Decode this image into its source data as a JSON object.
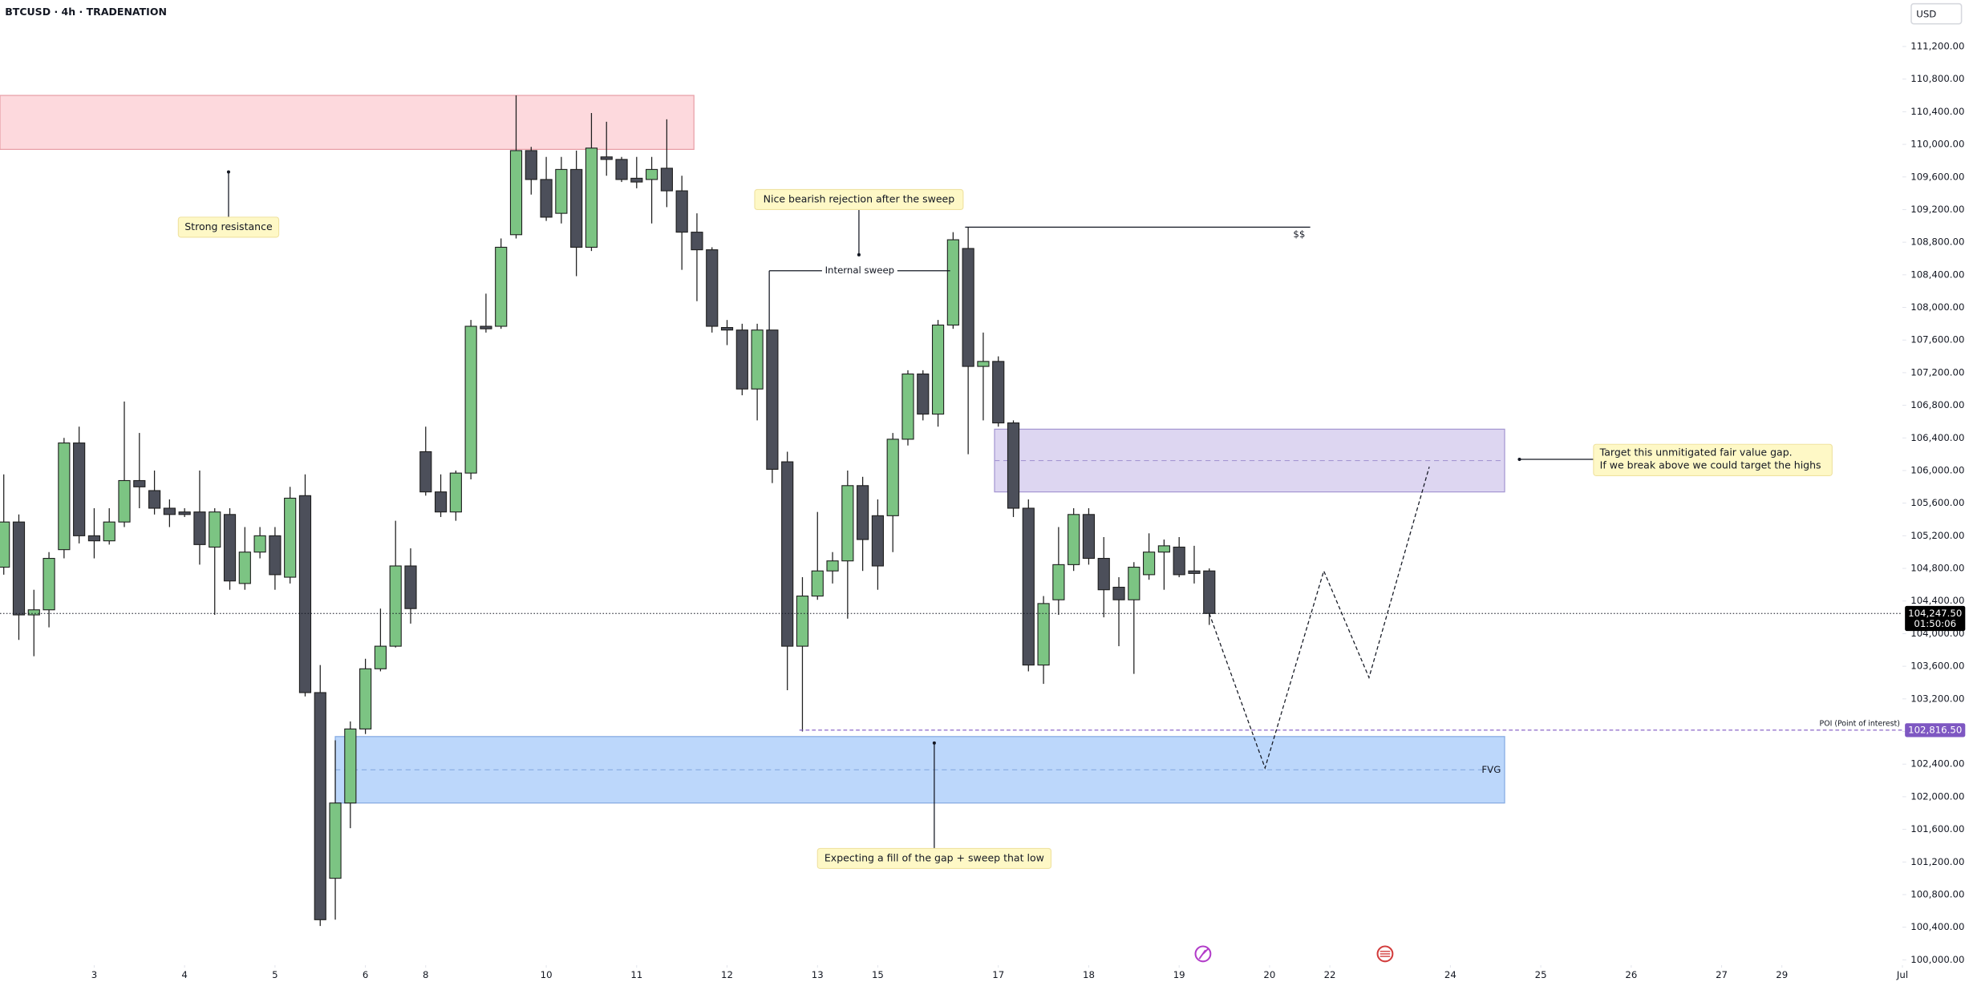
{
  "chart_data": {
    "type": "candlestick",
    "title": "BTCUSD · 4h · TRADENATION",
    "currency": "USD",
    "up_color": "#7cc483",
    "down_color": "#4c4f5a",
    "outline_color": "#1e1e1e",
    "open": [
      104815,
      105369,
      104230,
      104292,
      105030,
      106338,
      105200,
      105138,
      105369,
      105877,
      105754,
      105538,
      105492,
      105492,
      105061,
      105461,
      104615,
      105000,
      105200,
      104692,
      105692,
      103277,
      101000,
      101923,
      102831,
      103569,
      103846,
      104830,
      106231,
      105738,
      105492,
      105969,
      107769,
      107769,
      108892,
      109923,
      109569,
      109154,
      109692,
      108738,
      109846,
      109815,
      109584,
      109569,
      109707,
      109430,
      108923,
      108707,
      107754,
      107723,
      107000,
      107723,
      106107,
      103846,
      104461,
      104769,
      104892,
      105815,
      105446,
      105446,
      106384,
      107184,
      106692,
      107784,
      108723,
      107277,
      107338,
      106584,
      105538,
      103615,
      104415,
      104846,
      105461,
      104923,
      104569,
      104415,
      104723,
      105000,
      105061,
      104769,
      104769
    ],
    "high": [
      105953,
      105461,
      104538,
      105000,
      106400,
      106538,
      105538,
      105538,
      106846,
      106461,
      106000,
      105646,
      105538,
      106000,
      105538,
      105538,
      105307,
      105307,
      105307,
      105800,
      105953,
      103615,
      102692,
      102923,
      103692,
      104307,
      105384,
      105046,
      106538,
      105953,
      106000,
      107846,
      108169,
      108846,
      110600,
      109969,
      109846,
      109846,
      109923,
      110384,
      110277,
      109846,
      109846,
      109846,
      110307,
      109615,
      109154,
      108738,
      107846,
      107800,
      107800,
      107723,
      106231,
      104692,
      105492,
      105000,
      106000,
      105923,
      105646,
      106461,
      107230,
      107230,
      107846,
      108923,
      108984,
      107692,
      107400,
      106615,
      105646,
      104461,
      105307,
      105538,
      105538,
      105184,
      104692,
      104877,
      105230,
      105154,
      105184,
      105077,
      104800
    ],
    "low": [
      104723,
      103923,
      103723,
      104077,
      104923,
      105107,
      104923,
      105092,
      105307,
      105538,
      105461,
      105307,
      105430,
      104846,
      104230,
      104538,
      104538,
      104923,
      104538,
      104615,
      103230,
      100415,
      100492,
      101615,
      102769,
      103538,
      103830,
      104123,
      105692,
      105430,
      105384,
      105892,
      107692,
      107738,
      108846,
      109384,
      109061,
      109030,
      108384,
      108692,
      109615,
      109538,
      109461,
      109030,
      109230,
      108461,
      108077,
      107692,
      107538,
      106923,
      106615,
      105846,
      103307,
      102800,
      104415,
      104615,
      104184,
      104769,
      104538,
      105000,
      106307,
      106615,
      106538,
      107738,
      106200,
      106615,
      106538,
      105430,
      103538,
      103384,
      104230,
      104769,
      104846,
      104200,
      103846,
      103507,
      104661,
      104538,
      104692,
      104615,
      104107
    ],
    "close": [
      105369,
      104230,
      104292,
      104923,
      106338,
      105200,
      105138,
      105369,
      105877,
      105800,
      105538,
      105461,
      105461,
      105092,
      105492,
      104646,
      105000,
      105200,
      104723,
      105661,
      103277,
      100492,
      101923,
      102831,
      103569,
      103846,
      104830,
      104307,
      105738,
      105492,
      105969,
      107769,
      107738,
      108738,
      109923,
      109569,
      109107,
      109692,
      108738,
      109954,
      109815,
      109569,
      109538,
      109692,
      109430,
      108923,
      108707,
      107769,
      107723,
      107000,
      107723,
      106015,
      103846,
      104461,
      104769,
      104892,
      105815,
      105154,
      104830,
      106384,
      107184,
      106692,
      107784,
      108830,
      107277,
      107338,
      106584,
      105538,
      103615,
      104369,
      104846,
      105461,
      104923,
      104538,
      104415,
      104815,
      105000,
      105077,
      104723,
      104738,
      104247.5
    ],
    "xlim": [
      -0.25,
      126
    ],
    "ylim": [
      99950,
      111770
    ],
    "xticks": [
      {
        "value": 6,
        "label": "3"
      },
      {
        "value": 12,
        "label": "4"
      },
      {
        "value": 18,
        "label": "5"
      },
      {
        "value": 24,
        "label": "6"
      },
      {
        "value": 28,
        "label": "8"
      },
      {
        "value": 36,
        "label": "10"
      },
      {
        "value": 42,
        "label": "11"
      },
      {
        "value": 48,
        "label": "12"
      },
      {
        "value": 54,
        "label": "13"
      },
      {
        "value": 58,
        "label": "15"
      },
      {
        "value": 66,
        "label": "17"
      },
      {
        "value": 72,
        "label": "18"
      },
      {
        "value": 78,
        "label": "19"
      },
      {
        "value": 84,
        "label": "20"
      },
      {
        "value": 88,
        "label": "22"
      },
      {
        "value": 96,
        "label": "24"
      },
      {
        "value": 102,
        "label": "25"
      },
      {
        "value": 108,
        "label": "26"
      },
      {
        "value": 114,
        "label": "27"
      },
      {
        "value": 118,
        "label": "29"
      },
      {
        "value": 126,
        "label": "Jul"
      }
    ],
    "yticks": [
      {
        "value": 100000,
        "label": "100,000.00"
      },
      {
        "value": 100400,
        "label": "100,400.00"
      },
      {
        "value": 100800,
        "label": "100,800.00"
      },
      {
        "value": 101200,
        "label": "101,200.00"
      },
      {
        "value": 101600,
        "label": "101,600.00"
      },
      {
        "value": 102000,
        "label": "102,000.00"
      },
      {
        "value": 102400,
        "label": "102,400.00"
      },
      {
        "value": 102800,
        "label": "102,800.00"
      },
      {
        "value": 103200,
        "label": "103,200.00"
      },
      {
        "value": 103600,
        "label": "103,600.00"
      },
      {
        "value": 104000,
        "label": "104,000.00"
      },
      {
        "value": 104400,
        "label": "104,400.00"
      },
      {
        "value": 104800,
        "label": "104,800.00"
      },
      {
        "value": 105200,
        "label": "105,200.00"
      },
      {
        "value": 105600,
        "label": "105,600.00"
      },
      {
        "value": 106000,
        "label": "106,000.00"
      },
      {
        "value": 106400,
        "label": "106,400.00"
      },
      {
        "value": 106800,
        "label": "106,800.00"
      },
      {
        "value": 107200,
        "label": "107,200.00"
      },
      {
        "value": 107600,
        "label": "107,600.00"
      },
      {
        "value": 108000,
        "label": "108,000.00"
      },
      {
        "value": 108400,
        "label": "108,400.00"
      },
      {
        "value": 108800,
        "label": "108,800.00"
      },
      {
        "value": 109200,
        "label": "109,200.00"
      },
      {
        "value": 109600,
        "label": "109,600.00"
      },
      {
        "value": 110000,
        "label": "110,000.00"
      },
      {
        "value": 110400,
        "label": "110,400.00"
      },
      {
        "value": 110800,
        "label": "110,800.00"
      },
      {
        "value": 111200,
        "label": "111,200.00"
      }
    ],
    "zones": [
      {
        "top": 110600,
        "bottom": 109938,
        "x": [
          -0.25,
          45.8
        ],
        "color": "#fdd9dd",
        "border": "#e8a0a8"
      },
      {
        "top": 106507,
        "bottom": 105738,
        "x": [
          65.75,
          99.6
        ],
        "color": "#ddd6f1",
        "border": "#a597d2"
      },
      {
        "label": "FVG",
        "top": 102738,
        "bottom": 101923,
        "x": [
          22,
          99.6
        ],
        "color": "#bcd7fb",
        "border": "#86abe2"
      }
    ],
    "levels": [
      {
        "label": "Internal sweep",
        "value": 108450,
        "x": [
          50.8,
          62.8
        ],
        "color": "#2962ff"
      },
      {
        "label": "$$",
        "value": 108985,
        "x": [
          63.8,
          86.7
        ],
        "color": "#131722"
      }
    ],
    "poi": {
      "text": "POI (Point of interest)",
      "value": 102816.5,
      "value_label": "102,816.50",
      "x_start": 52.8,
      "color": "#7e57c2"
    },
    "last_price": {
      "value": 104247.5,
      "label": "104,247.50",
      "countdown": "01:50:06"
    },
    "projection": {
      "x": [
        80,
        83.7,
        87.6,
        90.6,
        94.6
      ],
      "y": [
        104247.5,
        102353,
        104769,
        103461,
        106046
      ]
    },
    "annotations": [
      {
        "text": "Strong resistance"
      },
      {
        "text": "Nice bearish rejection after the sweep"
      },
      {
        "lines": [
          "Target this unmitigated fair value gap.",
          "If we break above we could target the highs"
        ]
      },
      {
        "text": "Expecting a fill of the gap + sweep that low"
      }
    ]
  }
}
